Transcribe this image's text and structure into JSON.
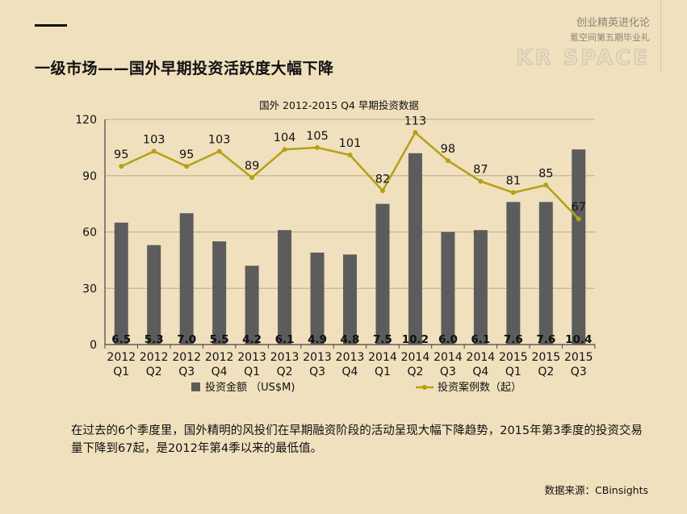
{
  "header": {
    "title": "一级市场——国外早期投资活跃度大幅下降",
    "brand_line1": "创业精英进化论",
    "brand_line2": "氪空间第五期毕业礼",
    "brand_logo": "KR SPACE"
  },
  "chart_data": {
    "type": "bar+line",
    "title": "国外 2012-2015 Q4 早期投资数据",
    "categories": [
      [
        "2012",
        "Q1"
      ],
      [
        "2012",
        "Q2"
      ],
      [
        "2012",
        "Q3"
      ],
      [
        "2012",
        "Q4"
      ],
      [
        "2013",
        "Q1"
      ],
      [
        "2013",
        "Q2"
      ],
      [
        "2013",
        "Q3"
      ],
      [
        "2013",
        "Q4"
      ],
      [
        "2014",
        "Q1"
      ],
      [
        "2014",
        "Q2"
      ],
      [
        "2014",
        "Q3"
      ],
      [
        "2014",
        "Q4"
      ],
      [
        "2015",
        "Q1"
      ],
      [
        "2015",
        "Q2"
      ],
      [
        "2015",
        "Q3"
      ]
    ],
    "bar_series": {
      "name": "投资金额 （US$M)",
      "values": [
        6.5,
        5.3,
        7.0,
        5.5,
        4.2,
        6.1,
        4.9,
        4.8,
        7.5,
        10.2,
        6.0,
        6.1,
        7.6,
        7.6,
        10.4
      ],
      "labels": [
        "6.5",
        "5.3",
        "7.0",
        "5.5",
        "4.2",
        "6.1",
        "4.9",
        "4.8",
        "7.5",
        "10.2",
        "6.0",
        "6.1",
        "7.6",
        "7.6",
        "10.4"
      ],
      "color": "#5c5c5c"
    },
    "line_series": {
      "name": "投资案例数（起）",
      "values": [
        95,
        103,
        95,
        103,
        89,
        104,
        105,
        101,
        82,
        113,
        98,
        87,
        81,
        85,
        67
      ],
      "color": "#b5a016"
    },
    "y_axis": {
      "min": 0,
      "max": 120,
      "ticks": [
        "0",
        "30",
        "60",
        "90",
        "120"
      ]
    },
    "bar_scale_factor": 10,
    "grid": true,
    "legend": "bottom"
  },
  "description": "在过去的6个季度里，国外精明的风投们在早期融资阶段的活动呈现大幅下降趋势，2015年第3季度的投资交易量下降到67起，是2012年第4季以来的最低值。",
  "source": "数据来源：CBinsights"
}
